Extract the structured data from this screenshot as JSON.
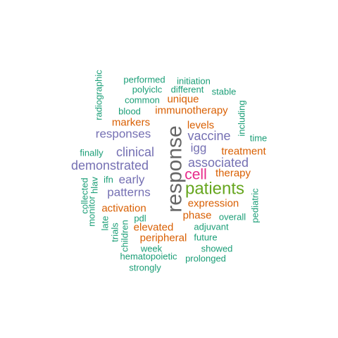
{
  "colors": {
    "teal": "#1b9e77",
    "orange": "#d95f02",
    "purple": "#7570b3",
    "magenta": "#e7298a",
    "green": "#66a61e",
    "gray": "#666666"
  },
  "words": [
    {
      "id": "response",
      "text": "response",
      "color": "gray",
      "rotated": true
    },
    {
      "id": "patients",
      "text": "patients",
      "color": "green",
      "rotated": false
    },
    {
      "id": "cell",
      "text": "cell",
      "color": "magenta",
      "rotated": false
    },
    {
      "id": "demonstrated",
      "text": "demonstrated",
      "color": "purple",
      "rotated": false
    },
    {
      "id": "associated",
      "text": "associated",
      "color": "purple",
      "rotated": false
    },
    {
      "id": "vaccine",
      "text": "vaccine",
      "color": "purple",
      "rotated": false
    },
    {
      "id": "responses",
      "text": "responses",
      "color": "purple",
      "rotated": false
    },
    {
      "id": "clinical",
      "text": "clinical",
      "color": "purple",
      "rotated": false
    },
    {
      "id": "patterns",
      "text": "patterns",
      "color": "purple",
      "rotated": false
    },
    {
      "id": "early",
      "text": "early",
      "color": "purple",
      "rotated": false
    },
    {
      "id": "igg",
      "text": "igg",
      "color": "purple",
      "rotated": false
    },
    {
      "id": "immunotherapy",
      "text": "immunotherapy",
      "color": "orange",
      "rotated": false
    },
    {
      "id": "treatment",
      "text": "treatment",
      "color": "orange",
      "rotated": false
    },
    {
      "id": "therapy",
      "text": "therapy",
      "color": "orange",
      "rotated": false
    },
    {
      "id": "expression",
      "text": "expression",
      "color": "orange",
      "rotated": false
    },
    {
      "id": "markers",
      "text": "markers",
      "color": "orange",
      "rotated": false
    },
    {
      "id": "levels",
      "text": "levels",
      "color": "orange",
      "rotated": false
    },
    {
      "id": "unique",
      "text": "unique",
      "color": "orange",
      "rotated": false
    },
    {
      "id": "activation",
      "text": "activation",
      "color": "orange",
      "rotated": false
    },
    {
      "id": "phase",
      "text": "phase",
      "color": "orange",
      "rotated": false
    },
    {
      "id": "elevated",
      "text": "elevated",
      "color": "orange",
      "rotated": false
    },
    {
      "id": "peripheral",
      "text": "peripheral",
      "color": "orange",
      "rotated": false
    },
    {
      "id": "performed",
      "text": "performed",
      "color": "teal",
      "rotated": false
    },
    {
      "id": "initiation",
      "text": "initiation",
      "color": "teal",
      "rotated": false
    },
    {
      "id": "polyiclc",
      "text": "polyiclc",
      "color": "teal",
      "rotated": false
    },
    {
      "id": "different",
      "text": "different",
      "color": "teal",
      "rotated": false
    },
    {
      "id": "stable",
      "text": "stable",
      "color": "teal",
      "rotated": false
    },
    {
      "id": "common",
      "text": "common",
      "color": "teal",
      "rotated": false
    },
    {
      "id": "blood",
      "text": "blood",
      "color": "teal",
      "rotated": false
    },
    {
      "id": "radiographic",
      "text": "radiographic",
      "color": "teal",
      "rotated": true
    },
    {
      "id": "including",
      "text": "including",
      "color": "teal",
      "rotated": true
    },
    {
      "id": "time",
      "text": "time",
      "color": "teal",
      "rotated": false
    },
    {
      "id": "finally",
      "text": "finally",
      "color": "teal",
      "rotated": false
    },
    {
      "id": "ifn",
      "text": "ifn",
      "color": "teal",
      "rotated": false
    },
    {
      "id": "hlav",
      "text": "hlav",
      "color": "teal",
      "rotated": true
    },
    {
      "id": "collected",
      "text": "collected",
      "color": "teal",
      "rotated": true
    },
    {
      "id": "monitor",
      "text": "monitor",
      "color": "teal",
      "rotated": true
    },
    {
      "id": "late",
      "text": "late",
      "color": "teal",
      "rotated": true
    },
    {
      "id": "trials",
      "text": "trials",
      "color": "teal",
      "rotated": true
    },
    {
      "id": "children",
      "text": "children",
      "color": "teal",
      "rotated": true
    },
    {
      "id": "pdl",
      "text": "pdl",
      "color": "teal",
      "rotated": false
    },
    {
      "id": "overall",
      "text": "overall",
      "color": "teal",
      "rotated": false
    },
    {
      "id": "pediatric",
      "text": "pediatric",
      "color": "teal",
      "rotated": true
    },
    {
      "id": "adjuvant",
      "text": "adjuvant",
      "color": "teal",
      "rotated": false
    },
    {
      "id": "future",
      "text": "future",
      "color": "teal",
      "rotated": false
    },
    {
      "id": "week",
      "text": "week",
      "color": "teal",
      "rotated": false
    },
    {
      "id": "showed",
      "text": "showed",
      "color": "teal",
      "rotated": false
    },
    {
      "id": "hematopoietic",
      "text": "hematopoietic",
      "color": "teal",
      "rotated": false
    },
    {
      "id": "prolonged",
      "text": "prolonged",
      "color": "teal",
      "rotated": false
    },
    {
      "id": "strongly",
      "text": "strongly",
      "color": "teal",
      "rotated": false
    }
  ]
}
